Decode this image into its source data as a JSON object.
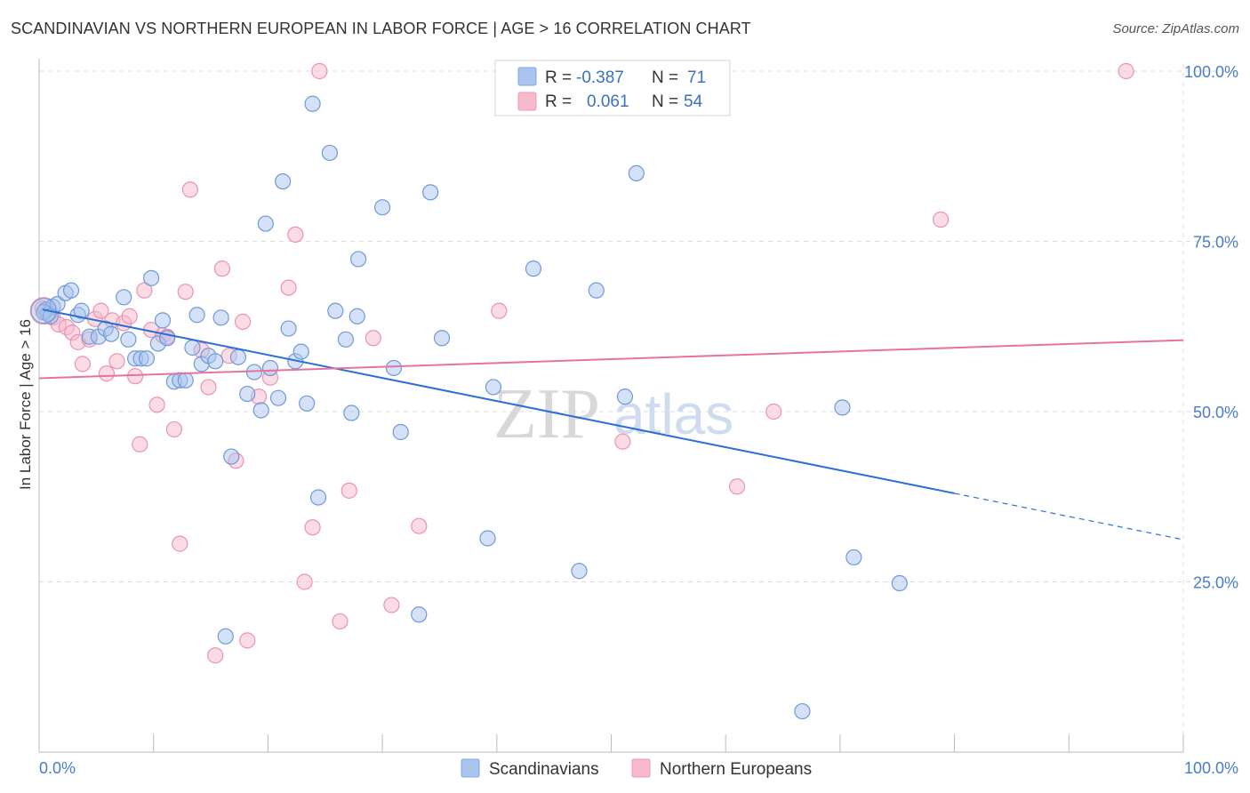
{
  "header": {
    "title": "SCANDINAVIAN VS NORTHERN EUROPEAN IN LABOR FORCE | AGE > 16 CORRELATION CHART",
    "source": "Source: ZipAtlas.com"
  },
  "watermark": {
    "part1": "ZIP",
    "part2": "atlas"
  },
  "legend_box": {
    "rows": [
      {
        "r_label": "R =",
        "r_value": "-0.387",
        "n_label": "N =",
        "n_value": "71",
        "color": "#a9c4ee"
      },
      {
        "r_label": "R =",
        "r_value": "0.061",
        "n_label": "N =",
        "n_value": "54",
        "color": "#f7b9cc"
      }
    ]
  },
  "bottom_legend": [
    {
      "label": "Scandinavians",
      "color": "#a9c4ee"
    },
    {
      "label": "Northern Europeans",
      "color": "#f7b9cc"
    }
  ],
  "colors": {
    "blue_fill": "#a9c4ee",
    "blue_stroke": "#6f9ad9",
    "blue_line": "#2a6fd6",
    "pink_fill": "#f7b9cc",
    "pink_stroke": "#ec92b0",
    "pink_line": "#e5739c",
    "grid": "#dddddd",
    "tick_text": "#4a7cc7"
  },
  "chart_data": {
    "type": "scatter",
    "title": "SCANDINAVIAN VS NORTHERN EUROPEAN IN LABOR FORCE | AGE > 16 CORRELATION CHART",
    "xlabel": "",
    "ylabel": "In Labor Force | Age > 16",
    "xlim": [
      0,
      100
    ],
    "ylim": [
      0,
      102
    ],
    "x_tick_labels": [
      "0.0%",
      "100.0%"
    ],
    "y_ticks": [
      25,
      50,
      75,
      100
    ],
    "y_tick_labels": [
      "25.0%",
      "50.0%",
      "75.0%",
      "100.0%"
    ],
    "grid": true,
    "legend_position": "bottom",
    "series": [
      {
        "name": "Scandinavians",
        "trend": {
          "x": [
            0.3,
            80.0
          ],
          "y": [
            65.0,
            38.0
          ],
          "dashed_to": [
            100.0,
            31.2
          ]
        },
        "points": [
          [
            0.6,
            65.0
          ],
          [
            0.8,
            64.4
          ],
          [
            1.2,
            65.4
          ],
          [
            1.6,
            65.8
          ],
          [
            2.3,
            67.4
          ],
          [
            2.8,
            67.8
          ],
          [
            3.4,
            64.2
          ],
          [
            3.7,
            64.8
          ],
          [
            4.4,
            61.0
          ],
          [
            5.2,
            61.0
          ],
          [
            5.8,
            62.2
          ],
          [
            6.3,
            61.4
          ],
          [
            7.4,
            66.8
          ],
          [
            7.8,
            60.6
          ],
          [
            8.4,
            57.8
          ],
          [
            8.9,
            57.8
          ],
          [
            9.4,
            57.8
          ],
          [
            9.8,
            69.6
          ],
          [
            10.4,
            60.0
          ],
          [
            10.8,
            63.4
          ],
          [
            11.2,
            60.8
          ],
          [
            11.8,
            54.4
          ],
          [
            12.3,
            54.6
          ],
          [
            12.8,
            54.6
          ],
          [
            13.4,
            59.4
          ],
          [
            13.8,
            64.2
          ],
          [
            14.2,
            57.0
          ],
          [
            14.8,
            58.2
          ],
          [
            15.4,
            57.4
          ],
          [
            15.9,
            63.8
          ],
          [
            16.3,
            17.0
          ],
          [
            16.8,
            43.4
          ],
          [
            17.4,
            58.0
          ],
          [
            18.2,
            52.6
          ],
          [
            18.8,
            55.8
          ],
          [
            19.4,
            50.2
          ],
          [
            19.8,
            77.6
          ],
          [
            20.2,
            56.4
          ],
          [
            20.9,
            52.0
          ],
          [
            21.3,
            83.8
          ],
          [
            21.8,
            62.2
          ],
          [
            22.4,
            57.4
          ],
          [
            22.9,
            58.8
          ],
          [
            23.4,
            51.2
          ],
          [
            23.9,
            95.2
          ],
          [
            24.4,
            37.4
          ],
          [
            25.4,
            88.0
          ],
          [
            25.9,
            64.8
          ],
          [
            26.8,
            60.6
          ],
          [
            27.3,
            49.8
          ],
          [
            27.8,
            64.0
          ],
          [
            27.9,
            72.4
          ],
          [
            30.0,
            80.0
          ],
          [
            31.0,
            56.4
          ],
          [
            31.6,
            47.0
          ],
          [
            34.2,
            82.2
          ],
          [
            35.2,
            60.8
          ],
          [
            39.2,
            31.4
          ],
          [
            39.7,
            53.6
          ],
          [
            43.2,
            71.0
          ],
          [
            47.2,
            26.6
          ],
          [
            48.7,
            67.8
          ],
          [
            51.2,
            52.2
          ],
          [
            52.2,
            85.0
          ],
          [
            66.7,
            6.0
          ],
          [
            70.2,
            50.6
          ],
          [
            71.2,
            28.6
          ],
          [
            75.2,
            24.8
          ],
          [
            33.2,
            20.2
          ],
          [
            0.4,
            64.6
          ],
          [
            1.0,
            64.0
          ]
        ]
      },
      {
        "name": "Northern Europeans",
        "trend": {
          "x": [
            0.0,
            100.0
          ],
          "y": [
            54.9,
            60.5
          ]
        },
        "points": [
          [
            0.3,
            65.2
          ],
          [
            0.7,
            64.4
          ],
          [
            1.2,
            63.8
          ],
          [
            1.7,
            62.8
          ],
          [
            2.4,
            62.4
          ],
          [
            2.9,
            61.6
          ],
          [
            3.4,
            60.2
          ],
          [
            3.8,
            57.0
          ],
          [
            4.4,
            60.6
          ],
          [
            4.9,
            63.6
          ],
          [
            5.4,
            64.8
          ],
          [
            5.9,
            55.6
          ],
          [
            6.4,
            63.4
          ],
          [
            6.8,
            57.4
          ],
          [
            7.4,
            63.0
          ],
          [
            7.9,
            64.0
          ],
          [
            8.4,
            55.2
          ],
          [
            8.8,
            45.2
          ],
          [
            9.2,
            67.8
          ],
          [
            9.8,
            62.0
          ],
          [
            10.3,
            51.0
          ],
          [
            10.8,
            61.2
          ],
          [
            11.2,
            61.0
          ],
          [
            11.8,
            47.4
          ],
          [
            12.3,
            30.6
          ],
          [
            12.8,
            67.6
          ],
          [
            13.2,
            82.6
          ],
          [
            14.2,
            59.0
          ],
          [
            14.8,
            53.6
          ],
          [
            15.4,
            14.2
          ],
          [
            16.0,
            71.0
          ],
          [
            16.6,
            58.2
          ],
          [
            17.2,
            42.8
          ],
          [
            17.8,
            63.2
          ],
          [
            18.2,
            16.4
          ],
          [
            19.2,
            52.2
          ],
          [
            20.2,
            55.0
          ],
          [
            21.8,
            68.2
          ],
          [
            22.4,
            76.0
          ],
          [
            23.2,
            25.0
          ],
          [
            23.9,
            33.0
          ],
          [
            24.5,
            100.0
          ],
          [
            26.3,
            19.2
          ],
          [
            27.1,
            38.4
          ],
          [
            29.2,
            60.8
          ],
          [
            30.8,
            21.6
          ],
          [
            33.2,
            33.2
          ],
          [
            40.2,
            64.8
          ],
          [
            51.0,
            45.6
          ],
          [
            61.0,
            39.0
          ],
          [
            64.2,
            50.0
          ],
          [
            78.8,
            78.2
          ],
          [
            95.0,
            100.0
          ],
          [
            0.5,
            64.8
          ]
        ]
      }
    ]
  }
}
